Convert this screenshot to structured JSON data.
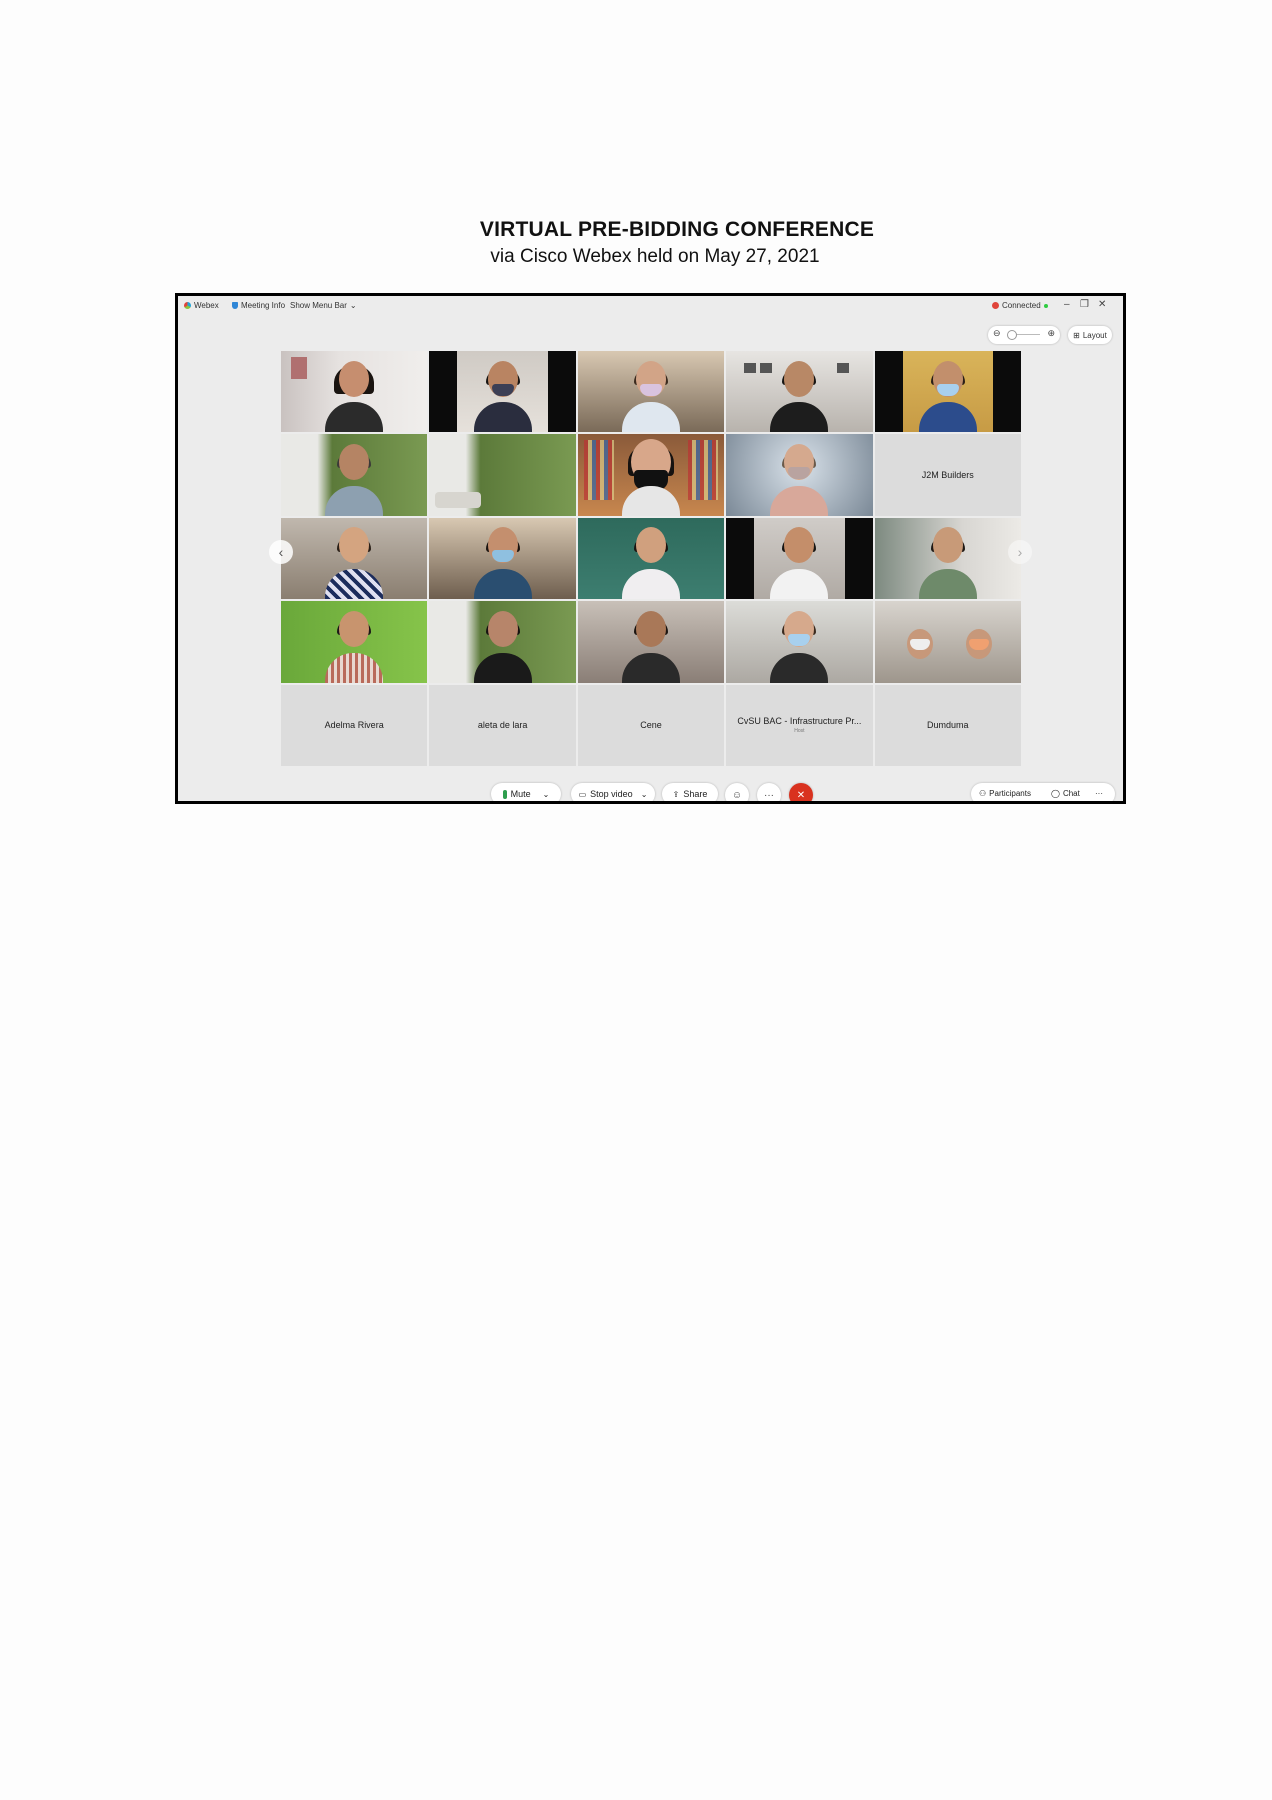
{
  "document": {
    "title": "VIRTUAL PRE-BIDDING CONFERENCE",
    "subtitle": "via Cisco Webex held on May 27, 2021"
  },
  "webex": {
    "app_name": "Webex",
    "meeting_info": "Meeting Info",
    "show_menu_bar": "Show Menu Bar",
    "connection_status": "Connected",
    "layout_label": "Layout",
    "name_tiles": {
      "j2m": "J2M Builders",
      "adelma": "Adelma Rivera",
      "aleta": "aleta de lara",
      "cene": "Cene",
      "cvsu": "CvSU BAC - Infrastructure Pr...",
      "cvsu_role": "Host",
      "dumduma": "Dumduma"
    },
    "controls": {
      "mute": "Mute",
      "stop_video": "Stop video",
      "share": "Share",
      "participants": "Participants",
      "chat": "Chat"
    },
    "colors": {
      "end_call": "#d9321f",
      "connected_dot": "#2ecc40",
      "recording_dot": "#e0443a"
    },
    "icons": [
      "webex-logo-icon",
      "shield-icon",
      "chevron-down-icon",
      "minimize-icon",
      "restore-icon",
      "close-icon",
      "zoom-out-icon",
      "zoom-in-icon",
      "layout-grid-icon",
      "microphone-icon",
      "video-camera-icon",
      "share-icon",
      "reactions-icon",
      "more-icon",
      "end-call-icon",
      "participants-icon",
      "chat-icon",
      "chevron-left-icon",
      "chevron-right-icon"
    ]
  }
}
